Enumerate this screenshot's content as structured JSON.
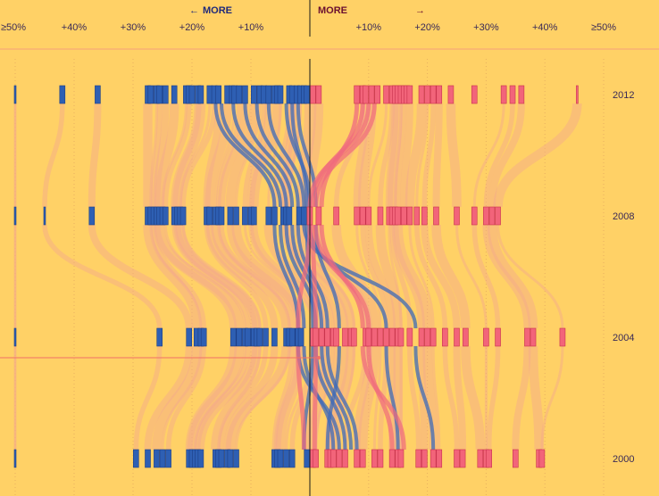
{
  "chart_data": {
    "type": "scatter",
    "header": {
      "left_arrow": "←",
      "left_label": "MORE",
      "right_label": "MORE",
      "right_arrow": "→"
    },
    "x_ticks": [
      {
        "label": "≥50%",
        "value": -50
      },
      {
        "label": "+40%",
        "value": -40
      },
      {
        "label": "+30%",
        "value": -30
      },
      {
        "label": "+20%",
        "value": -20
      },
      {
        "label": "+10%",
        "value": -10
      },
      {
        "label": "+10%",
        "value": 10
      },
      {
        "label": "+20%",
        "value": 20
      },
      {
        "label": "+30%",
        "value": 30
      },
      {
        "label": "+40%",
        "value": 40
      },
      {
        "label": "≥50%",
        "value": 50
      }
    ],
    "xlim": [
      -50,
      50
    ],
    "years": [
      "2012",
      "2008",
      "2004",
      "2000"
    ],
    "colors": {
      "background": "#FFD166",
      "left": "#2E5FB3",
      "right": "#F2647A",
      "flow_light": "#F5A98C",
      "flow_left": "#3E6AB8",
      "flow_right": "#F06A7E",
      "center_line": "#1a1a1a"
    },
    "marks": {
      "2012": [
        -50,
        -42,
        -36,
        -27.5,
        -27,
        -26,
        -25.5,
        -24.5,
        -23,
        -21,
        -20.5,
        -20,
        -19,
        -18.5,
        -17,
        -16.2,
        -15.5,
        -14,
        -13.2,
        -12.8,
        -12,
        -11,
        -9.5,
        -8.5,
        -7.8,
        -7,
        -6,
        -5.5,
        -5,
        -3.5,
        -3,
        -2.2,
        -1.6,
        -1,
        -0.5,
        0.5,
        1.5,
        8,
        9,
        9.5,
        10.5,
        11.5,
        13,
        14,
        14.5,
        15,
        15.5,
        16,
        16.5,
        17,
        19,
        20,
        21,
        22,
        24,
        28,
        33,
        34.5,
        36,
        45.5
      ],
      "2008": [
        -50,
        -45,
        -37,
        -27.5,
        -27,
        -26.5,
        -26,
        -25.5,
        -25,
        -24.5,
        -23,
        -22.5,
        -22,
        -21.5,
        -17.5,
        -17,
        -16,
        -15.5,
        -15,
        -13.5,
        -12.5,
        -11,
        -10,
        -9.5,
        -7,
        -6,
        -4.5,
        -4,
        -3.5,
        -1.8,
        -1,
        0,
        1.5,
        4.5,
        8,
        9,
        10,
        12,
        13.5,
        14,
        14.5,
        15,
        16,
        17,
        18.2,
        19.5,
        21.5,
        25,
        28,
        30,
        31,
        32
      ],
      "2004": [
        -50,
        -25.5,
        -20.5,
        -19.2,
        -18.5,
        -18,
        -13,
        -12,
        -11,
        -10.5,
        -9.5,
        -9,
        -8.5,
        -7.5,
        -6,
        -4,
        -3.5,
        -3,
        -2,
        -1.5,
        0.5,
        1,
        2,
        3,
        4,
        4.5,
        6,
        7,
        7.5,
        9.5,
        10,
        11,
        12,
        13,
        14,
        15,
        15.5,
        17,
        19,
        20,
        21,
        23,
        25,
        26.5,
        30,
        32,
        37,
        38,
        43
      ],
      "2000": [
        -50,
        -29.5,
        -27.5,
        -26,
        -25,
        -24,
        -20.5,
        -20,
        -19.5,
        -19,
        -18.5,
        -16,
        -15.5,
        -15,
        -14,
        -13.5,
        -12.5,
        -6,
        -5.5,
        -5,
        -4,
        -3,
        -0.5,
        0.5,
        1,
        3,
        3.5,
        4,
        5,
        6,
        8,
        9,
        11,
        12,
        14,
        15,
        15.5,
        18.5,
        19.5,
        21,
        22,
        25,
        26,
        29,
        30,
        30.5,
        35,
        39,
        39.5
      ]
    },
    "highlighted_flows": [
      {
        "side": "left",
        "path": [
          -16,
          -6,
          -2,
          5
        ]
      },
      {
        "side": "left",
        "path": [
          -15,
          -5,
          -1,
          4
        ]
      },
      {
        "side": "left",
        "path": [
          -13,
          -4,
          1,
          6
        ]
      },
      {
        "side": "left",
        "path": [
          -11,
          -3,
          2,
          7
        ]
      },
      {
        "side": "left",
        "path": [
          -9,
          -2,
          3,
          8
        ]
      },
      {
        "side": "left",
        "path": [
          -7,
          -1,
          18,
          21
        ]
      },
      {
        "side": "left",
        "path": [
          -4,
          0,
          13,
          15
        ]
      },
      {
        "side": "left",
        "path": [
          -2,
          1,
          5,
          3
        ]
      },
      {
        "side": "left",
        "path": [
          -3,
          -0.5,
          0.5,
          -1
        ]
      },
      {
        "side": "right",
        "path": [
          10,
          0,
          -2,
          -1
        ]
      },
      {
        "side": "right",
        "path": [
          11,
          1,
          10,
          14
        ]
      },
      {
        "side": "right",
        "path": [
          8,
          2,
          9,
          16
        ]
      },
      {
        "side": "right",
        "path": [
          9,
          0.5,
          1,
          0.8
        ]
      }
    ]
  }
}
